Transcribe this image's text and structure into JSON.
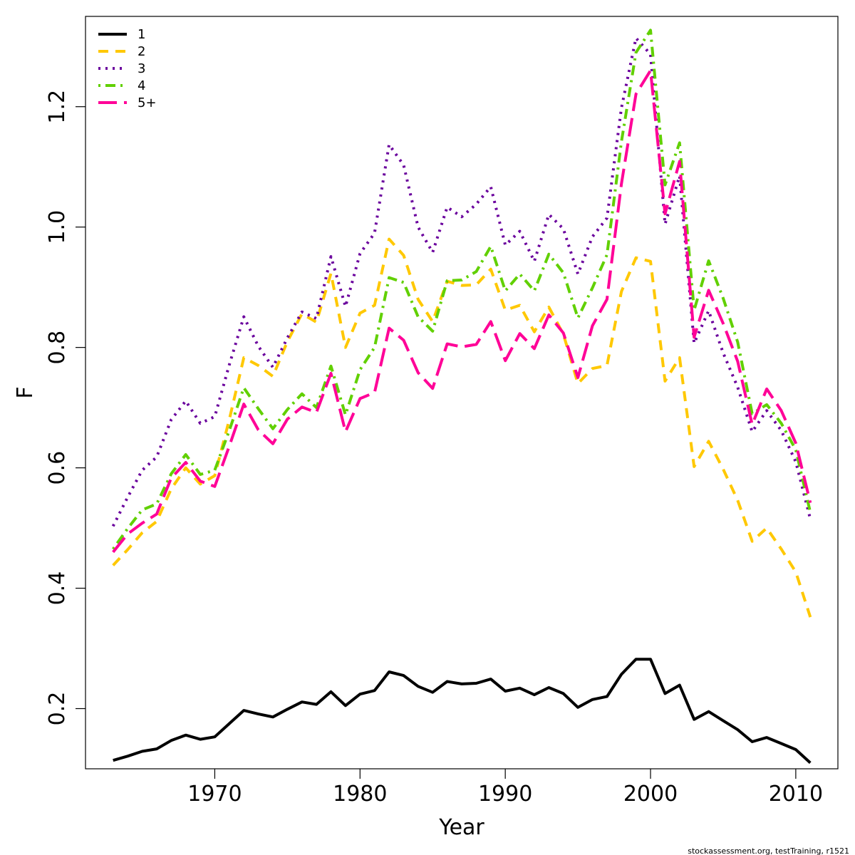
{
  "chart_data": {
    "type": "line",
    "title": "",
    "xlabel": "Year",
    "ylabel": "F",
    "xlim": [
      1961.1,
      2012.9
    ],
    "ylim": [
      0.1,
      1.35
    ],
    "x_ticks": [
      1970,
      1980,
      1990,
      2000,
      2010
    ],
    "y_ticks": [
      0.2,
      0.4,
      0.6,
      0.8,
      1.0,
      1.2
    ],
    "y_tick_labels": [
      "0.2",
      "0.4",
      "0.6",
      "0.8",
      "1.0",
      "1.2"
    ],
    "legend_position": "top-left",
    "grid": false,
    "x": [
      1963,
      1964,
      1965,
      1966,
      1967,
      1968,
      1969,
      1970,
      1971,
      1972,
      1973,
      1974,
      1975,
      1976,
      1977,
      1978,
      1979,
      1980,
      1981,
      1982,
      1983,
      1984,
      1985,
      1986,
      1987,
      1988,
      1989,
      1990,
      1991,
      1992,
      1993,
      1994,
      1995,
      1996,
      1997,
      1998,
      1999,
      2000,
      2001,
      2002,
      2003,
      2004,
      2005,
      2006,
      2007,
      2008,
      2009,
      2010,
      2011
    ],
    "series": [
      {
        "name": "1",
        "color": "#000000",
        "dash": "solid",
        "values": [
          0.114,
          0.121,
          0.129,
          0.133,
          0.147,
          0.156,
          0.149,
          0.153,
          0.175,
          0.197,
          0.191,
          0.186,
          0.199,
          0.211,
          0.207,
          0.228,
          0.205,
          0.224,
          0.23,
          0.261,
          0.255,
          0.237,
          0.227,
          0.245,
          0.241,
          0.242,
          0.249,
          0.229,
          0.234,
          0.223,
          0.235,
          0.225,
          0.202,
          0.215,
          0.22,
          0.257,
          0.282,
          0.282,
          0.225,
          0.239,
          0.182,
          0.195,
          0.18,
          0.165,
          0.145,
          0.152,
          0.142,
          0.132,
          0.11
        ]
      },
      {
        "name": "2",
        "color": "#FFC800",
        "dash": "dashed",
        "values": [
          0.438,
          0.464,
          0.492,
          0.511,
          0.565,
          0.6,
          0.573,
          0.587,
          0.68,
          0.783,
          0.77,
          0.752,
          0.81,
          0.856,
          0.842,
          0.923,
          0.8,
          0.857,
          0.87,
          0.98,
          0.953,
          0.88,
          0.843,
          0.91,
          0.903,
          0.904,
          0.93,
          0.862,
          0.87,
          0.826,
          0.867,
          0.822,
          0.74,
          0.765,
          0.77,
          0.893,
          0.949,
          0.943,
          0.744,
          0.783,
          0.602,
          0.644,
          0.598,
          0.546,
          0.478,
          0.5,
          0.465,
          0.427,
          0.352
        ]
      },
      {
        "name": "3",
        "color": "#6A009D",
        "dash": "dotted",
        "values": [
          0.503,
          0.551,
          0.596,
          0.618,
          0.68,
          0.711,
          0.674,
          0.685,
          0.771,
          0.851,
          0.802,
          0.767,
          0.816,
          0.859,
          0.848,
          0.951,
          0.868,
          0.956,
          0.99,
          1.137,
          1.103,
          1.0,
          0.958,
          1.033,
          1.017,
          1.038,
          1.067,
          0.97,
          0.993,
          0.943,
          1.021,
          0.997,
          0.922,
          0.984,
          1.015,
          1.198,
          1.314,
          1.287,
          1.005,
          1.085,
          0.807,
          0.861,
          0.791,
          0.734,
          0.66,
          0.695,
          0.662,
          0.61,
          0.515
        ]
      },
      {
        "name": "4",
        "color": "#61D000",
        "dash": "dotdash",
        "values": [
          0.465,
          0.499,
          0.53,
          0.54,
          0.59,
          0.622,
          0.589,
          0.596,
          0.662,
          0.733,
          0.698,
          0.665,
          0.697,
          0.723,
          0.7,
          0.769,
          0.688,
          0.763,
          0.8,
          0.916,
          0.908,
          0.851,
          0.827,
          0.911,
          0.912,
          0.926,
          0.968,
          0.894,
          0.922,
          0.894,
          0.955,
          0.924,
          0.849,
          0.899,
          0.954,
          1.142,
          1.29,
          1.327,
          1.07,
          1.14,
          0.862,
          0.944,
          0.882,
          0.809,
          0.69,
          0.705,
          0.674,
          0.63,
          0.526
        ]
      },
      {
        "name": "5+",
        "color": "#FF0097",
        "dash": "longdash",
        "values": [
          0.46,
          0.49,
          0.508,
          0.523,
          0.583,
          0.609,
          0.578,
          0.569,
          0.636,
          0.706,
          0.663,
          0.64,
          0.681,
          0.701,
          0.692,
          0.757,
          0.66,
          0.715,
          0.725,
          0.832,
          0.812,
          0.758,
          0.732,
          0.806,
          0.801,
          0.805,
          0.843,
          0.778,
          0.823,
          0.798,
          0.854,
          0.824,
          0.75,
          0.836,
          0.88,
          1.072,
          1.221,
          1.26,
          1.022,
          1.109,
          0.817,
          0.895,
          0.84,
          0.777,
          0.672,
          0.731,
          0.695,
          0.641,
          0.542
        ]
      }
    ]
  },
  "credit": "stockassessment.org, testTraining, r1521"
}
